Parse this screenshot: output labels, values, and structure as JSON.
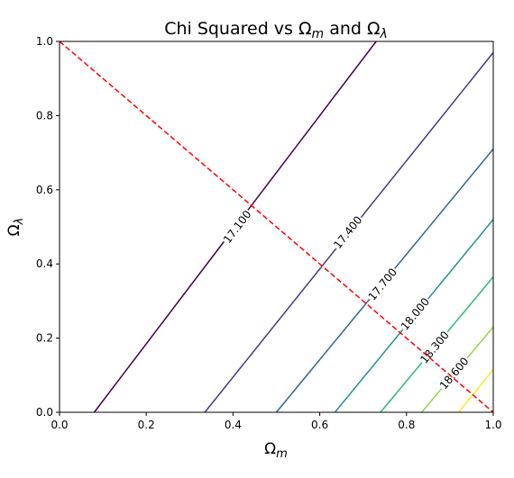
{
  "chart_data": {
    "type": "contour",
    "title": {
      "prefix": "Chi Squared vs Ω",
      "sub1": "m",
      "mid": " and Ω",
      "sub2": "λ"
    },
    "xlabel": {
      "base": "Ω",
      "sub": "m"
    },
    "ylabel": {
      "base": "Ω",
      "sub": "λ"
    },
    "xlim": [
      0.0,
      1.0
    ],
    "ylim": [
      0.0,
      1.0
    ],
    "xticks": [
      "0.0",
      "0.2",
      "0.4",
      "0.6",
      "0.8",
      "1.0"
    ],
    "yticks": [
      "0.0",
      "0.2",
      "0.4",
      "0.6",
      "0.8",
      "1.0"
    ],
    "grid": false,
    "colormap": "viridis",
    "contours": [
      {
        "level": "17.100",
        "color": "#440154",
        "start": [
          0.08,
          0.0
        ],
        "end": [
          0.73,
          1.0
        ],
        "label_at": [
          0.41,
          0.5
        ]
      },
      {
        "level": "17.400",
        "color": "#443983",
        "start": [
          0.335,
          0.0
        ],
        "end": [
          1.0,
          0.97
        ],
        "label_at": [
          0.665,
          0.485
        ]
      },
      {
        "level": "17.700",
        "color": "#31688e",
        "start": [
          0.5,
          0.0
        ],
        "end": [
          1.0,
          0.71
        ],
        "label_at": [
          0.745,
          0.345
        ]
      },
      {
        "level": "18.000",
        "color": "#21918c",
        "start": [
          0.635,
          0.0
        ],
        "end": [
          1.0,
          0.52
        ],
        "label_at": [
          0.82,
          0.265
        ]
      },
      {
        "level": "18.300",
        "color": "#35b779",
        "start": [
          0.74,
          0.0
        ],
        "end": [
          1.0,
          0.365
        ],
        "label_at": [
          0.865,
          0.175
        ]
      },
      {
        "level": "18.600",
        "color": "#90d743",
        "start": [
          0.835,
          0.0
        ],
        "end": [
          1.0,
          0.23
        ],
        "label_at": [
          0.91,
          0.105
        ]
      },
      {
        "level": "",
        "color": "#fde725",
        "start": [
          0.92,
          0.0
        ],
        "end": [
          1.0,
          0.115
        ],
        "label_at": null
      }
    ],
    "reference_line": {
      "color": "#ff0000",
      "style": "dashed",
      "start": [
        0.0,
        1.0
      ],
      "end": [
        1.0,
        0.0
      ]
    }
  }
}
